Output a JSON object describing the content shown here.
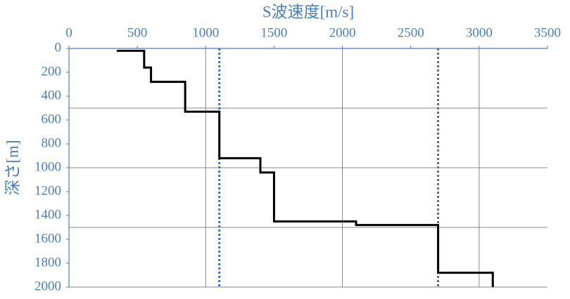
{
  "chart_data": {
    "type": "line",
    "title": "S波速度[m/s]",
    "y_label": "深さ[m]",
    "series": [
      {
        "name": "S波速度",
        "color": "#000000",
        "x": [
          350,
          550,
          550,
          600,
          600,
          850,
          850,
          1100,
          1100,
          1400,
          1400,
          1500,
          1500,
          2100,
          2100,
          2700,
          2700,
          3100,
          3100
        ],
        "values": [
          20,
          20,
          160,
          160,
          280,
          280,
          530,
          530,
          920,
          920,
          1040,
          1040,
          1450,
          1450,
          1480,
          1480,
          1880,
          1880,
          2000
        ]
      }
    ],
    "reference_lines": {
      "color": "#2e75d6",
      "x": [
        1100,
        2700
      ]
    },
    "xlim": [
      0,
      3500
    ],
    "xticks": [
      0,
      500,
      1000,
      1500,
      2000,
      2500,
      3000,
      3500
    ],
    "ylim": [
      0,
      2000
    ],
    "yticks": [
      0,
      200,
      400,
      600,
      800,
      1000,
      1200,
      1400,
      1600,
      1800,
      2000
    ],
    "y_inverted": true,
    "xgrid": [
      1000,
      2000,
      3000
    ],
    "ygrid": [
      500,
      1000,
      1500,
      2000
    ],
    "axis_color": "#4a7ebb"
  }
}
